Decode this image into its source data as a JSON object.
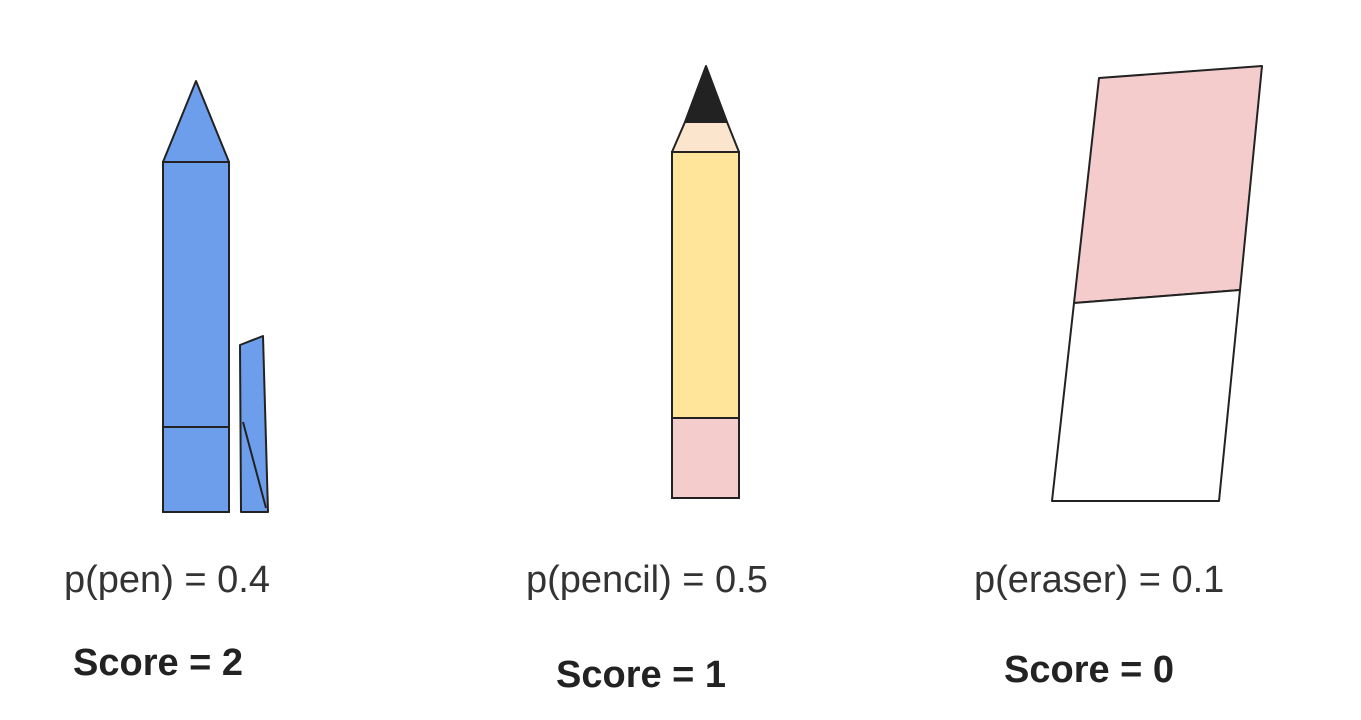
{
  "items": [
    {
      "name": "pen",
      "probability_label": "p(pen) = 0.4",
      "probability": 0.4,
      "score_label": "Score = 2",
      "score": 2,
      "color": "#6d9eeb"
    },
    {
      "name": "pencil",
      "probability_label": "p(pencil) = 0.5",
      "probability": 0.5,
      "score_label": "Score = 1",
      "score": 1,
      "colors": {
        "body": "#ffe599",
        "eraser": "#f4cccc",
        "wood": "#fce5cd",
        "lead": "#222222"
      }
    },
    {
      "name": "eraser",
      "probability_label": "p(eraser) = 0.1",
      "probability": 0.1,
      "score_label": "Score = 0",
      "score": 0,
      "colors": {
        "sleeve": "#f4cccc",
        "body": "#ffffff"
      }
    }
  ],
  "outline_color": "#222222"
}
